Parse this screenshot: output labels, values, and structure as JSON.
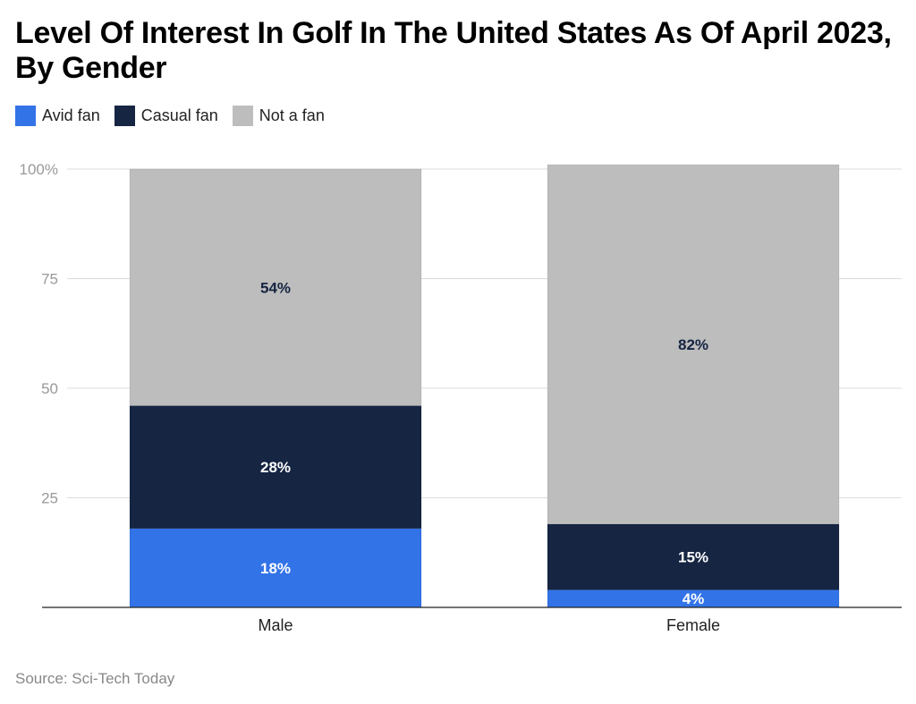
{
  "chart_data": {
    "type": "bar",
    "stacked": true,
    "title": "Level Of Interest In Golf In The United States As Of April 2023, By Gender",
    "categories": [
      "Male",
      "Female"
    ],
    "series": [
      {
        "name": "Avid fan",
        "values": [
          18,
          4
        ],
        "color": "#3373e8",
        "label_color": "#ffffff"
      },
      {
        "name": "Casual fan",
        "values": [
          28,
          15
        ],
        "color": "#152542",
        "label_color": "#ffffff"
      },
      {
        "name": "Not a fan",
        "values": [
          54,
          82
        ],
        "color": "#bdbdbd",
        "label_color": "#152542"
      }
    ],
    "data_labels": [
      [
        "18%",
        "4%"
      ],
      [
        "28%",
        "15%"
      ],
      [
        "54%",
        "82%"
      ]
    ],
    "yticks": [
      0,
      25,
      50,
      75,
      100
    ],
    "ytick_labels": [
      "",
      "25",
      "50",
      "75",
      "100%"
    ],
    "ylim": [
      0,
      100
    ],
    "grid": true,
    "legend_position": "top-left",
    "source": "Source: Sci-Tech Today"
  }
}
